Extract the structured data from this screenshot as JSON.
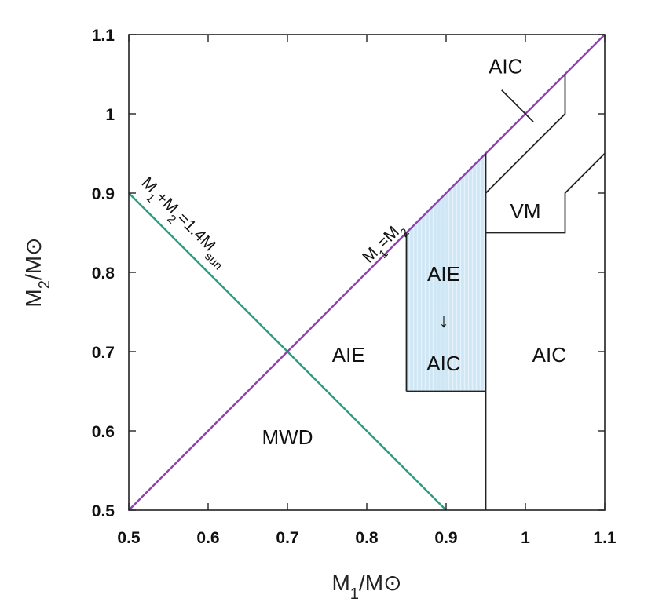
{
  "chart_data": {
    "type": "line",
    "xlabel": "M1/M⊙",
    "ylabel": "M2/M⊙",
    "xlim": [
      0.5,
      1.1
    ],
    "ylim": [
      0.5,
      1.1
    ],
    "xticks": [
      0.5,
      0.6,
      0.7,
      0.8,
      0.9,
      1,
      1.1
    ],
    "yticks": [
      0.5,
      0.6,
      0.7,
      0.8,
      0.9,
      1,
      1.1
    ],
    "xtick_labels": [
      "0.5",
      "0.6",
      "0.7",
      "0.8",
      "0.9",
      "1",
      "1.1"
    ],
    "ytick_labels": [
      "0.5",
      "0.6",
      "0.7",
      "0.8",
      "0.9",
      "1",
      "1.1"
    ],
    "grid": false,
    "series": [
      {
        "name": "M1+M2=1.4Msun",
        "color": "#2a9d7f",
        "points": [
          [
            0.5,
            0.9
          ],
          [
            0.9,
            0.5
          ]
        ]
      },
      {
        "name": "M1=M2",
        "color": "#8e44ad",
        "points": [
          [
            0.5,
            0.5
          ],
          [
            1.1,
            1.1
          ]
        ]
      }
    ],
    "boundaries": [
      {
        "points": [
          [
            0.95,
            0.5
          ],
          [
            0.95,
            0.95
          ]
        ],
        "color": "#222222"
      },
      {
        "points": [
          [
            0.85,
            0.65
          ],
          [
            0.95,
            0.65
          ]
        ],
        "color": "#222222"
      },
      {
        "points": [
          [
            0.85,
            0.65
          ],
          [
            0.85,
            0.85
          ]
        ],
        "color": "#222222"
      },
      {
        "points": [
          [
            0.95,
            0.85
          ],
          [
            1.05,
            0.85
          ],
          [
            1.05,
            0.9
          ],
          [
            1.1,
            0.95
          ]
        ],
        "color": "#222222"
      },
      {
        "points": [
          [
            0.95,
            0.9
          ],
          [
            1.05,
            1.0
          ],
          [
            1.05,
            1.05
          ]
        ],
        "color": "#222222"
      },
      {
        "points": [
          [
            0.97,
            1.03
          ],
          [
            1.01,
            0.99
          ]
        ],
        "color": "#222222"
      }
    ],
    "shaded_region": {
      "points": [
        [
          0.85,
          0.65
        ],
        [
          0.95,
          0.65
        ],
        [
          0.95,
          0.95
        ],
        [
          0.85,
          0.85
        ]
      ],
      "color": "#cfe6f5"
    },
    "region_labels": [
      {
        "text": "AIC",
        "x": 0.975,
        "y": 1.06
      },
      {
        "text": "VM",
        "x": 1.0,
        "y": 0.877
      },
      {
        "text": "AIE",
        "x": 0.897,
        "y": 0.798
      },
      {
        "text": "↓",
        "x": 0.897,
        "y": 0.74
      },
      {
        "text": "AIC",
        "x": 0.897,
        "y": 0.685
      },
      {
        "text": "AIE",
        "x": 0.777,
        "y": 0.696
      },
      {
        "text": "AIC",
        "x": 1.03,
        "y": 0.696
      },
      {
        "text": "MWD",
        "x": 0.7,
        "y": 0.592
      }
    ],
    "line_labels": {
      "sum": {
        "text": "M1+M2=1.4Msun"
      },
      "equal": {
        "text": "M1=M2"
      }
    }
  }
}
